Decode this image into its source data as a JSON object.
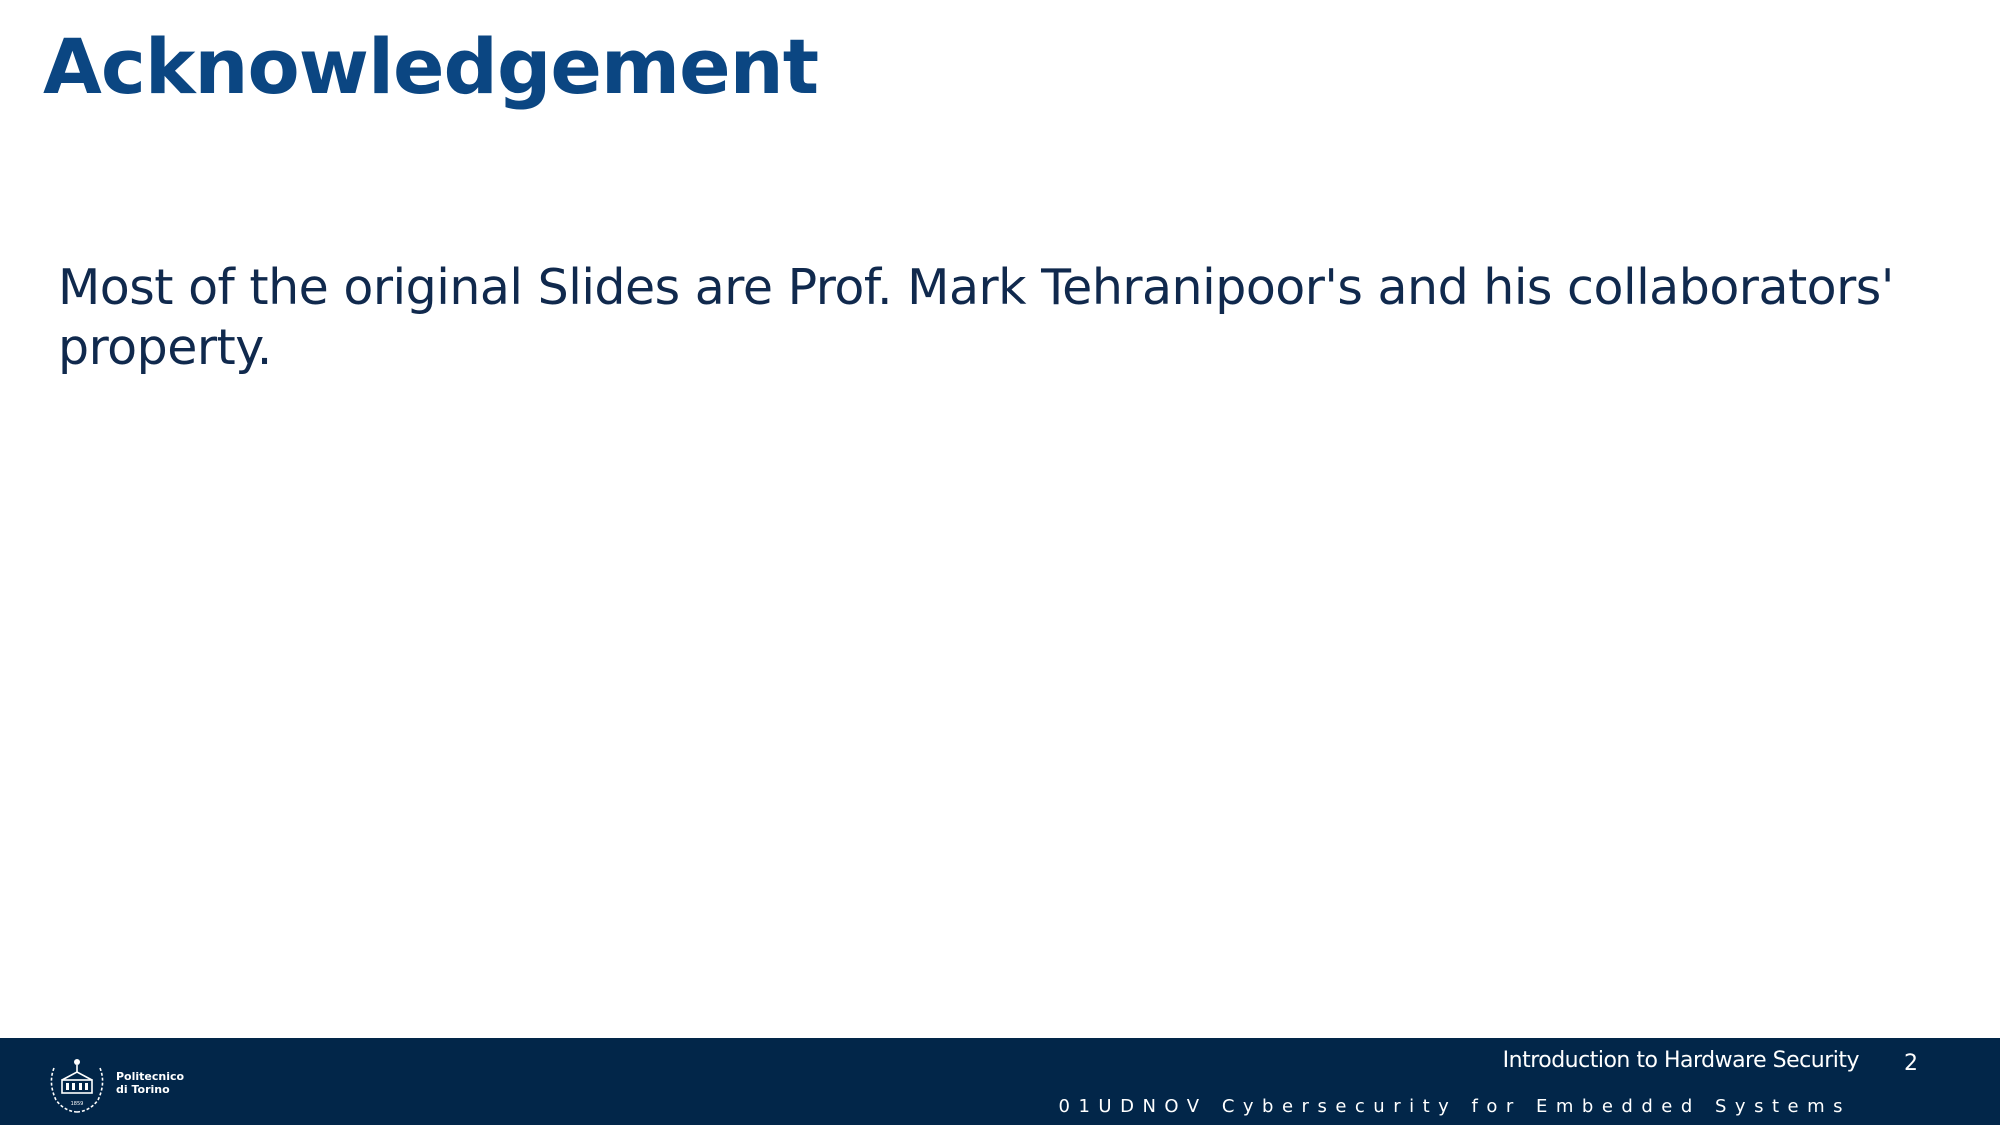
{
  "slide": {
    "title": "Acknowledgement",
    "body": "Most of the original Slides are Prof. Mark Tehranipoor's and his collaborators' property."
  },
  "footer": {
    "logo": {
      "icon": "politecnico-seal-icon",
      "line1": "Politecnico",
      "line2": "di Torino",
      "year": "1859"
    },
    "course_title": "Introduction to Hardware Security",
    "page_number": "2",
    "course_code": "01UDNOV Cybersecurity for Embedded Systems"
  },
  "colors": {
    "title": "#0b4682",
    "body_text": "#10294d",
    "footer_bg": "#022649",
    "footer_text": "#ffffff"
  }
}
